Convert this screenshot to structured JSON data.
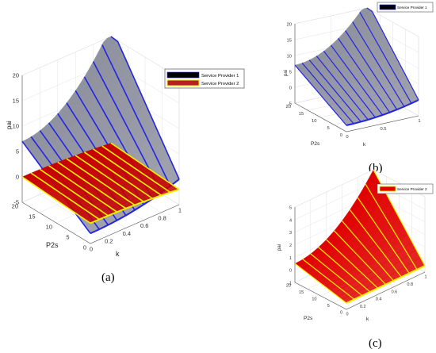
{
  "chart_data": [
    {
      "type": "surface",
      "panel_label": "(a)",
      "xlabel": "k",
      "ylabel": "P2s",
      "zlabel": "pai",
      "x_ticks": [
        "0",
        "0.2",
        "0.4",
        "0.6",
        "0.8",
        "1"
      ],
      "y_ticks": [
        "0",
        "5",
        "10",
        "15",
        "20"
      ],
      "z_ticks": [
        "-5",
        "0",
        "5",
        "10",
        "15",
        "20"
      ],
      "xlim": [
        0,
        1
      ],
      "ylim": [
        0,
        20
      ],
      "zlim": [
        -5,
        20
      ],
      "grid": true,
      "legend_position": "top-right",
      "series": [
        {
          "name": "Service Provider 1",
          "face_color": "#8e919e",
          "line_color": "#2424e6",
          "z_at_k0": [
            -3,
            7
          ],
          "z_at_k1": [
            0,
            22
          ]
        },
        {
          "name": "Service Provider 2",
          "face_color": "#c80000",
          "line_color": "#f2f000",
          "z_at_k0": [
            -1,
            0
          ],
          "z_at_k1": [
            -2,
            -1
          ]
        }
      ]
    },
    {
      "type": "surface",
      "panel_label": "(b)",
      "xlabel": "k",
      "ylabel": "P2s",
      "zlabel": "pai",
      "x_ticks": [
        "0",
        "0.5",
        "1"
      ],
      "y_ticks": [
        "0",
        "5",
        "10",
        "15",
        "20"
      ],
      "z_ticks": [
        "-5",
        "0",
        "5",
        "10",
        "15",
        "20"
      ],
      "xlim": [
        0,
        1
      ],
      "ylim": [
        0,
        20
      ],
      "zlim": [
        -5,
        20
      ],
      "grid": true,
      "legend_position": "top-right",
      "series": [
        {
          "name": "Service Provider 1",
          "face_color": "#8e919e",
          "line_color": "#2424e6",
          "z_at_k0": [
            -3,
            7
          ],
          "z_at_k1": [
            0,
            22
          ]
        }
      ]
    },
    {
      "type": "surface",
      "panel_label": "(c)",
      "xlabel": "k",
      "ylabel": "P2s",
      "zlabel": "pai",
      "x_ticks": [
        "0",
        "0.2",
        "0.4",
        "0.6",
        "0.8",
        "1"
      ],
      "y_ticks": [
        "0",
        "5",
        "10",
        "15",
        "20"
      ],
      "z_ticks": [
        "-1",
        "0",
        "1",
        "2",
        "3",
        "4",
        "5"
      ],
      "xlim": [
        0,
        1
      ],
      "ylim": [
        0,
        20
      ],
      "zlim": [
        -1,
        5
      ],
      "grid": true,
      "legend_position": "top-right",
      "series": [
        {
          "name": "Service Provider 2",
          "face_color": "#e00000",
          "line_color": "#f2f000",
          "z_at_k0": [
            -0.5,
            0.5
          ],
          "z_at_k1": [
            -0.5,
            5
          ]
        }
      ]
    }
  ]
}
